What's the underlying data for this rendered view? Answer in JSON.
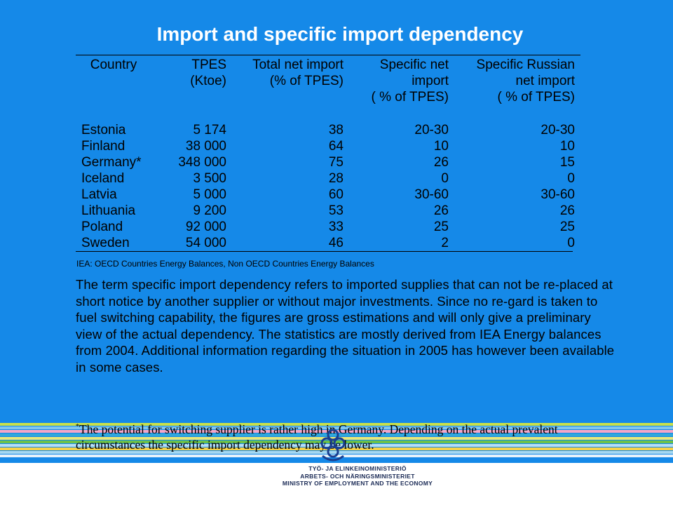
{
  "title": "Import and specific import dependency",
  "table": {
    "headers": [
      [
        "Country"
      ],
      [
        "TPES",
        "(Ktoe)"
      ],
      [
        "Total net import",
        "(% of TPES)"
      ],
      [
        "Specific net",
        "import",
        "( % of TPES)"
      ],
      [
        "Specific Russian",
        "net import",
        "( % of TPES)"
      ]
    ],
    "rows": [
      [
        "Estonia",
        "5 174",
        "38",
        "20-30",
        "20-30"
      ],
      [
        "Finland",
        "38 000",
        "64",
        "10",
        "10"
      ],
      [
        "Germany*",
        "348 000",
        "75",
        "26",
        "15"
      ],
      [
        "Iceland",
        "3 500",
        "28",
        "0",
        "0"
      ],
      [
        "Latvia",
        "5 000",
        "60",
        "30-60",
        "30-60"
      ],
      [
        "Lithuania",
        "9 200",
        "53",
        "26",
        "26"
      ],
      [
        "Poland",
        "92 000",
        "33",
        "25",
        "25"
      ],
      [
        "Sweden",
        "54 000",
        "46",
        "2",
        "0"
      ]
    ]
  },
  "source": "IEA: OECD Countries Energy Balances, Non OECD Countries Energy Balances",
  "paragraph": "The term specific import dependency refers to imported supplies that can not be re-placed at short notice by another supplier or without major investments. Since no re-gard is taken to fuel switching capability, the figures are gross estimations and will only give a preliminary view of the actual dependency. The statistics are mostly derived from IEA Energy balances from 2004. Additional information regarding the situation in 2005 has however been available in some cases.",
  "footnote": {
    "marker": "*",
    "text": "The potential for switching supplier is rather high in Germany. Depending on the actual prevalent circumstances the specific import dependency may be lower."
  },
  "ministry": {
    "line1": "TYÖ- JA ELINKEINOMINISTERIÖ",
    "line2": "ARBETS- OCH NÄRINGSMINISTERIET",
    "line3": "MINISTRY OF EMPLOYMENT AND THE ECONOMY"
  },
  "colors": {
    "background": "#1589e8",
    "stripes": [
      "#c9e04a",
      "#7fc6ef",
      "#f4a6c6",
      "#2fa8dc",
      "#e8e87a",
      "#6cc24a",
      "#b8dff5",
      "#f7d24a",
      "#a6d8f0",
      "#e6f2fb"
    ]
  }
}
